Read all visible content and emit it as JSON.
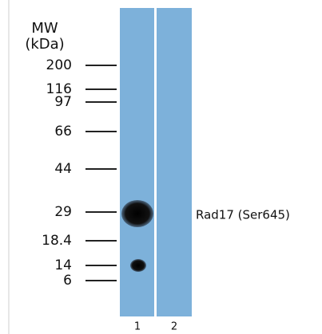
{
  "header": {
    "title": "MW",
    "unit": "(kDa)"
  },
  "markers": [
    "200",
    "116",
    "97",
    "66",
    "44",
    "29",
    "18.4",
    "14",
    "6"
  ],
  "band_label": "Rad17 (Ser645)",
  "lanes": [
    "1",
    "2"
  ]
}
